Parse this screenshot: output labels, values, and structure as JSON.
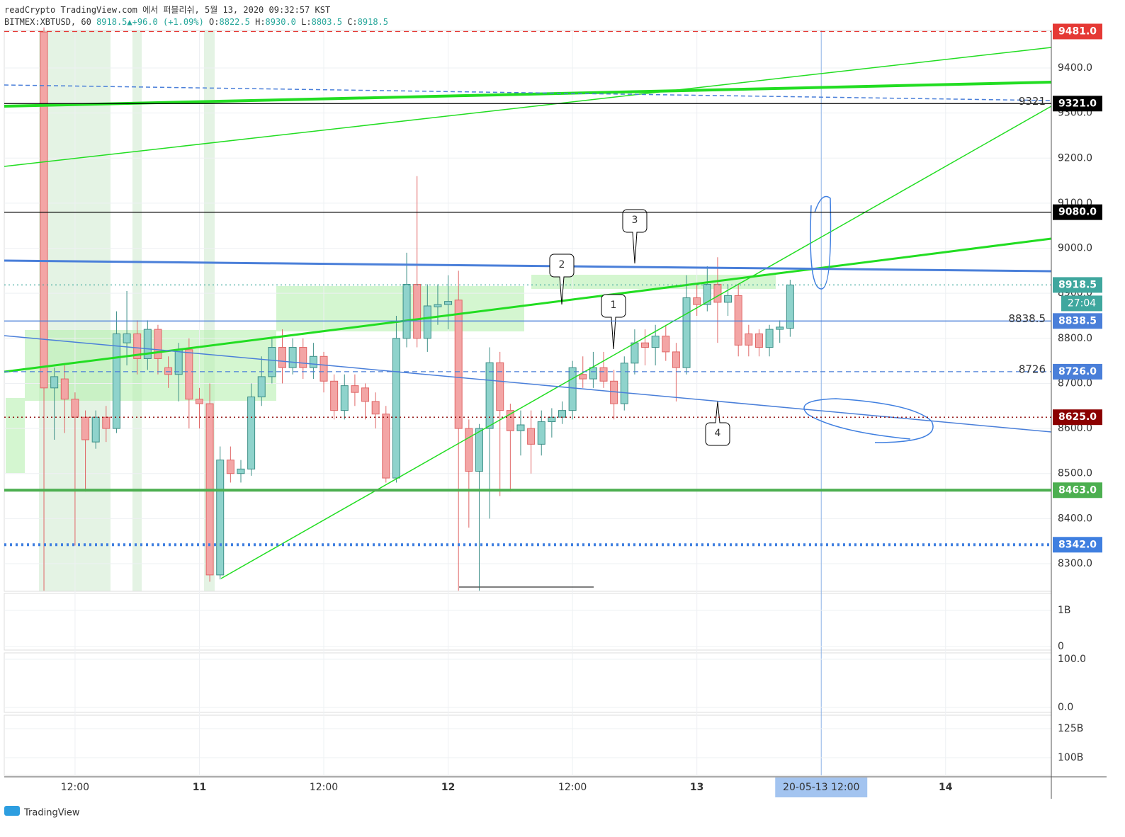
{
  "header": {
    "title": "readCrypto TradingView.com 에서 퍼블리쉬, 5월 13, 2020 09:32:57 KST",
    "symbol": "BITMEX:XBTUSD, 60",
    "last": 8918.5,
    "arrow": "▲",
    "change": "+96.0 (+1.09%)",
    "ohlc": [
      {
        "key": "O:",
        "value": "8822.5"
      },
      {
        "key": "H:",
        "value": "8930.0"
      },
      {
        "key": "L:",
        "value": "8803.5"
      },
      {
        "key": "C:",
        "value": "8918.5"
      }
    ]
  },
  "chart_data": {
    "type": "candlestick",
    "xlim": [
      -3.83,
      97.2
    ],
    "ylim": [
      8238.7,
      9483.3
    ],
    "yticks": [
      {
        "value": 8300,
        "label": "8300.0"
      },
      {
        "value": 8400,
        "label": "8400.0"
      },
      {
        "value": 8500,
        "label": "8500.0"
      },
      {
        "value": 8600,
        "label": "8600.0"
      },
      {
        "value": 8700,
        "label": "8700.0"
      },
      {
        "value": 8800,
        "label": "8800.0"
      },
      {
        "value": 8900,
        "label": "8900.0"
      },
      {
        "value": 9000,
        "label": "9000.0"
      },
      {
        "value": 9100,
        "label": "9100.0"
      },
      {
        "value": 9200,
        "label": "9200.0"
      },
      {
        "value": 9300,
        "label": "9300.0"
      },
      {
        "value": 9400,
        "label": "9400.0"
      }
    ],
    "xticks": [
      {
        "value": 3,
        "label": "12:00"
      },
      {
        "value": 15,
        "label": "11"
      },
      {
        "value": 27,
        "label": "12:00"
      },
      {
        "value": 39,
        "label": "12"
      },
      {
        "value": 51,
        "label": "12:00"
      },
      {
        "value": 63,
        "label": "13"
      },
      {
        "value": 87,
        "label": "14"
      }
    ],
    "crosshair": {
      "value": 75,
      "label": "20-05-13  12:00"
    },
    "countdown": "27:04",
    "grid": true,
    "up_color": "#8fd3cc",
    "down_color": "#f3a5a5",
    "candles": {
      "open": [
        9480,
        8690,
        8710,
        8665,
        8625,
        8570,
        8625,
        8600,
        8790,
        8810,
        8755,
        8820,
        8735,
        8720,
        8775,
        8665,
        8655,
        8275,
        8530,
        8500,
        8510,
        8670,
        8715,
        8780,
        8735,
        8780,
        8735,
        8760,
        8705,
        8640,
        8695,
        8690,
        8660,
        8632,
        8490,
        8800,
        8920,
        8800,
        8870,
        8875,
        8885,
        8600,
        8505,
        8600,
        8746,
        8640,
        8595,
        8600,
        8565,
        8615,
        8625,
        8640,
        8720,
        8710,
        8735,
        8705,
        8655,
        8745,
        8790,
        8780,
        8805,
        8770,
        8735,
        8890,
        8875,
        8920,
        8880,
        8895,
        8810,
        8810,
        8780,
        8820,
        8822.5
      ],
      "high": [
        9490,
        8735,
        8740,
        8680,
        8640,
        8640,
        8650,
        8860,
        8905,
        8840,
        8840,
        8830,
        8760,
        8790,
        8800,
        8690,
        8700,
        8560,
        8560,
        8530,
        8700,
        8760,
        8800,
        8820,
        8800,
        8800,
        8790,
        8770,
        8720,
        8720,
        8720,
        8700,
        8680,
        8650,
        8850,
        8990,
        9160,
        8920,
        8920,
        8940,
        8950,
        8620,
        8610,
        8780,
        8770,
        8655,
        8640,
        8640,
        8640,
        8645,
        8660,
        8750,
        8760,
        8770,
        8770,
        8730,
        8760,
        8820,
        8820,
        8830,
        8830,
        8790,
        8940,
        8920,
        8960,
        8980,
        8920,
        8920,
        8830,
        8820,
        8830,
        8840,
        8930
      ],
      "low": [
        8240,
        8575,
        8590,
        8340,
        8460,
        8555,
        8570,
        8590,
        8740,
        8720,
        8730,
        8720,
        8690,
        8660,
        8600,
        8600,
        8260,
        8265,
        8480,
        8480,
        8495,
        8650,
        8700,
        8700,
        8720,
        8710,
        8710,
        8680,
        8620,
        8620,
        8650,
        8620,
        8600,
        8480,
        8480,
        8780,
        8780,
        8770,
        8830,
        8820,
        8240,
        8380,
        8240,
        8400,
        8450,
        8460,
        8540,
        8500,
        8540,
        8580,
        8610,
        8620,
        8690,
        8690,
        8690,
        8620,
        8640,
        8720,
        8740,
        8740,
        8750,
        8660,
        8720,
        8850,
        8860,
        8790,
        8850,
        8760,
        8760,
        8760,
        8760,
        8790,
        8803.5
      ],
      "close": [
        8690,
        8715,
        8665,
        8625,
        8575,
        8625,
        8600,
        8810,
        8810,
        8755,
        8820,
        8755,
        8720,
        8775,
        8665,
        8655,
        8275,
        8530,
        8500,
        8510,
        8670,
        8715,
        8780,
        8735,
        8780,
        8735,
        8760,
        8705,
        8640,
        8695,
        8680,
        8660,
        8632,
        8490,
        8800,
        8920,
        8800,
        8872,
        8875,
        8882,
        8600,
        8505,
        8600,
        8746,
        8640,
        8595,
        8608,
        8565,
        8615,
        8625,
        8640,
        8735,
        8710,
        8735,
        8705,
        8655,
        8745,
        8790,
        8780,
        8805,
        8770,
        8735,
        8890,
        8875,
        8920,
        8880,
        8895,
        8785,
        8785,
        8780,
        8820,
        8825,
        8918.5
      ]
    },
    "levels": [
      {
        "value": 9481,
        "label": "9481.0",
        "color": "#e53935",
        "style": "dashed"
      },
      {
        "value": 9321,
        "label": "9321.0",
        "color": "#000000",
        "style": "solid",
        "note": "9321"
      },
      {
        "value": 9080,
        "label": "9080.0",
        "color": "#000000",
        "style": "solid"
      },
      {
        "value": 8918.5,
        "label": "8918.5",
        "color": "#3fa79e",
        "style": "dotted"
      },
      {
        "value": 8838.5,
        "label": "8838.5",
        "color": "#4a7fd9",
        "style": "solid",
        "note": "8838.5"
      },
      {
        "value": 8726,
        "label": "8726.0",
        "color": "#4a7fd9",
        "style": "dashed",
        "note": "8726"
      },
      {
        "value": 8625,
        "label": "8625.0",
        "color": "#8b0000",
        "style": "dotted"
      },
      {
        "value": 8463,
        "label": "8463.0",
        "color": "#4caf50",
        "style": "thick"
      },
      {
        "value": 8342,
        "label": "8342.0",
        "color": "#3f7fe0",
        "style": "dotted-thick"
      }
    ],
    "callouts": [
      "1",
      "2",
      "3",
      "4"
    ]
  },
  "panes": [
    {
      "name": "volume",
      "ylim": [
        -0.1,
        1.47
      ],
      "yticks": [
        0,
        {
          "value": 1,
          "label": "1B"
        }
      ]
    },
    {
      "name": "oscillator",
      "ylim": [
        -10.3,
        113.2
      ],
      "yticks": [
        {
          "value": 0,
          "label": "0.0"
        },
        {
          "value": 100,
          "label": "100.0"
        }
      ]
    },
    {
      "name": "obv",
      "ylim": [
        84.8,
        136.6
      ],
      "yticks": [
        {
          "value": 100,
          "label": "100B"
        },
        {
          "value": 125,
          "label": "125B"
        }
      ]
    }
  ],
  "footer": "TradingView"
}
